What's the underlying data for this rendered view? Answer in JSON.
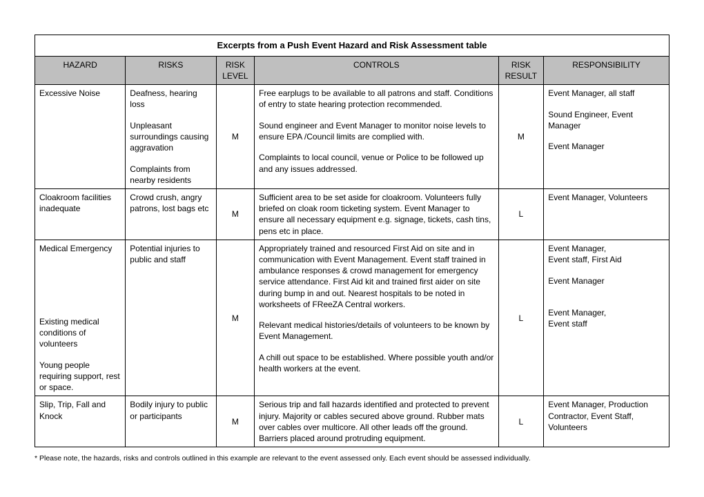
{
  "title": "Excerpts from a Push Event Hazard and Risk Assessment table",
  "headers": {
    "hazard": "HAZARD",
    "risks": "RISKS",
    "riskLevel": "RISK LEVEL",
    "controls": "CONTROLS",
    "riskResult": "RISK RESULT",
    "responsibility": "RESPONSIBILITY"
  },
  "rows": [
    {
      "hazard": "Excessive Noise",
      "risks_p1": "Deafness, hearing loss",
      "risks_p2": "Unpleasant surroundings causing aggravation",
      "risks_p3": "Complaints from nearby residents",
      "riskLevel": "M",
      "controls_p1": "Free earplugs to be available to all patrons and staff. Conditions of entry to state hearing protection recommended.",
      "controls_p2": "Sound engineer and Event Manager to monitor noise levels to ensure EPA /Council limits are complied with.",
      "controls_p3": "Complaints to local council, venue or Police to be followed up and any issues addressed.",
      "riskResult": "M",
      "resp_p1": "Event Manager, all staff",
      "resp_p2": "Sound Engineer, Event Manager",
      "resp_p3": "Event Manager"
    },
    {
      "hazard": "Cloakroom facilities inadequate",
      "risks": "Crowd crush, angry patrons, lost bags etc",
      "riskLevel": "M",
      "controls": "Sufficient area to be set aside for cloakroom.  Volunteers fully briefed on cloak room ticketing system.   Event Manager to ensure all necessary equipment e.g. signage, tickets, cash tins, pens etc in place.",
      "riskResult": "L",
      "responsibility": "Event Manager, Volunteers"
    },
    {
      "hazard_p1": "Medical Emergency",
      "hazard_p2": "Existing medical conditions of volunteers",
      "hazard_p3": "Young people requiring support, rest or space.",
      "risks": "Potential injuries to public and staff",
      "riskLevel": "M",
      "controls_p1": "Appropriately trained and resourced First Aid on site and in communication with Event Management. Event staff trained in ambulance responses & crowd management for emergency service attendance. First Aid kit and trained first aider on site during bump in and out. Nearest hospitals to be noted in worksheets of FReeZA Central workers.",
      "controls_p2": "Relevant medical histories/details of volunteers to be known by Event Management.",
      "controls_p3": "A chill out space to be established. Where possible youth and/or health workers at the event.",
      "riskResult": "L",
      "resp_p1": "Event Manager,",
      "resp_p2": "Event staff, First Aid",
      "resp_p3": "Event Manager",
      "resp_p4": "Event Manager,",
      "resp_p5": "Event staff"
    },
    {
      "hazard": "Slip, Trip, Fall and Knock",
      "risks": "Bodily injury to public or participants",
      "riskLevel": "M",
      "controls": "Serious trip and fall hazards identified and protected to prevent injury. Majority or cables secured above ground. Rubber mats over cables over multicore. All other leads off the ground. Barriers placed around protruding equipment.",
      "riskResult": "L",
      "responsibility": "Event Manager, Production  Contractor, Event Staff, Volunteers"
    }
  ],
  "footnote": "* Please note, the hazards, risks and controls outlined in this example are relevant to the event assessed only. Each event should be assessed individually."
}
